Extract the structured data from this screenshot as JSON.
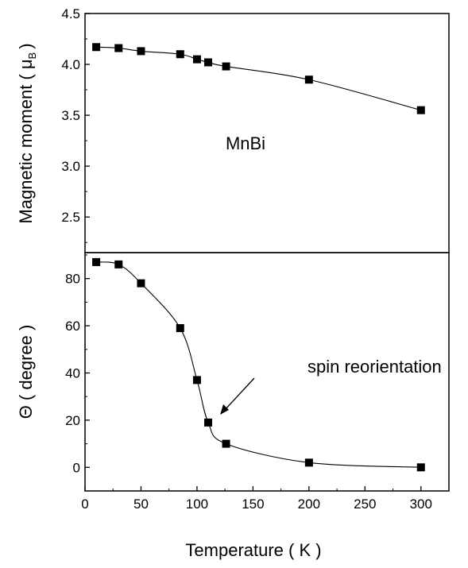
{
  "chart_data": [
    {
      "type": "scatter",
      "panel": "top",
      "ylabel": "Magnetic moment ( μB )",
      "ylabel_text": "Magnetic moment (",
      "ylabel_symbol": "μ",
      "ylabel_subscript": "B",
      "ylabel_close": ")",
      "ylim": [
        2.15,
        4.5
      ],
      "yticks": [
        "2.5",
        "3.0",
        "3.5",
        "4.0",
        "4.5"
      ],
      "xlim": [
        0,
        325
      ],
      "annotation": "MnBi",
      "series": [
        {
          "x": [
            10,
            30,
            50,
            85,
            100,
            110,
            126,
            200,
            300
          ],
          "y": [
            4.17,
            4.16,
            4.13,
            4.1,
            4.05,
            4.02,
            3.98,
            3.85,
            3.55
          ]
        }
      ]
    },
    {
      "type": "scatter",
      "panel": "bottom",
      "ylabel": "Θ ( degree )",
      "ylim": [
        -10,
        91
      ],
      "yticks": [
        "0",
        "20",
        "40",
        "60",
        "80"
      ],
      "xlim": [
        0,
        325
      ],
      "xticks": [
        "0",
        "50",
        "100",
        "150",
        "200",
        "250",
        "300"
      ],
      "xlabel": "Temperature ( K )",
      "annotation": "spin reorientation",
      "series": [
        {
          "x": [
            10,
            30,
            50,
            85,
            100,
            110,
            126,
            200,
            300
          ],
          "y": [
            87,
            86,
            78,
            59,
            37,
            19,
            10,
            2,
            0
          ]
        }
      ]
    }
  ]
}
